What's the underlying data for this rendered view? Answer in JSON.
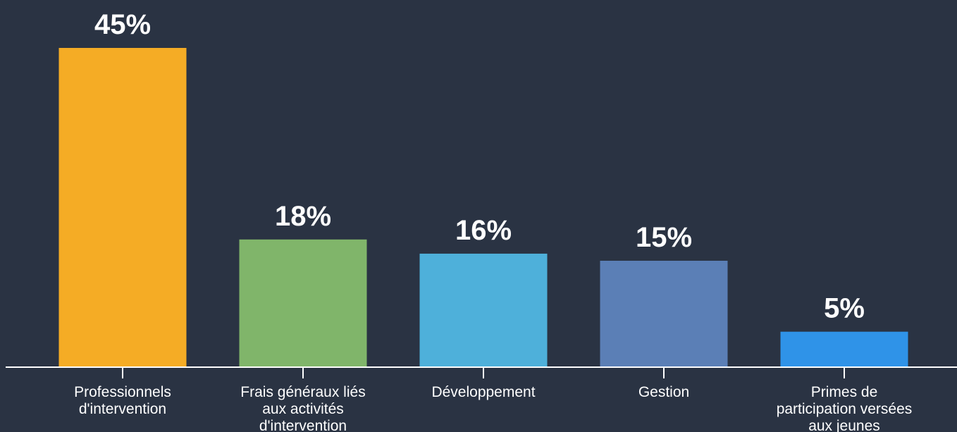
{
  "chart_data": {
    "type": "bar",
    "categories": [
      [
        "Professionnels",
        "d'intervention"
      ],
      [
        "Frais généraux liés",
        "aux activités",
        "d'intervention"
      ],
      [
        "Développement"
      ],
      [
        "Gestion"
      ],
      [
        "Primes de",
        "participation versées",
        "aux jeunes"
      ]
    ],
    "values": [
      45,
      18,
      16,
      15,
      5
    ],
    "value_labels": [
      "45%",
      "18%",
      "16%",
      "15%",
      "5%"
    ],
    "colors": [
      "#f5ac25",
      "#80b56a",
      "#4eb0da",
      "#5b7fb6",
      "#2f93e8"
    ],
    "ylim": [
      0,
      45
    ],
    "grid": false,
    "background": "#2a3343",
    "axis_color": "#ffffff"
  }
}
